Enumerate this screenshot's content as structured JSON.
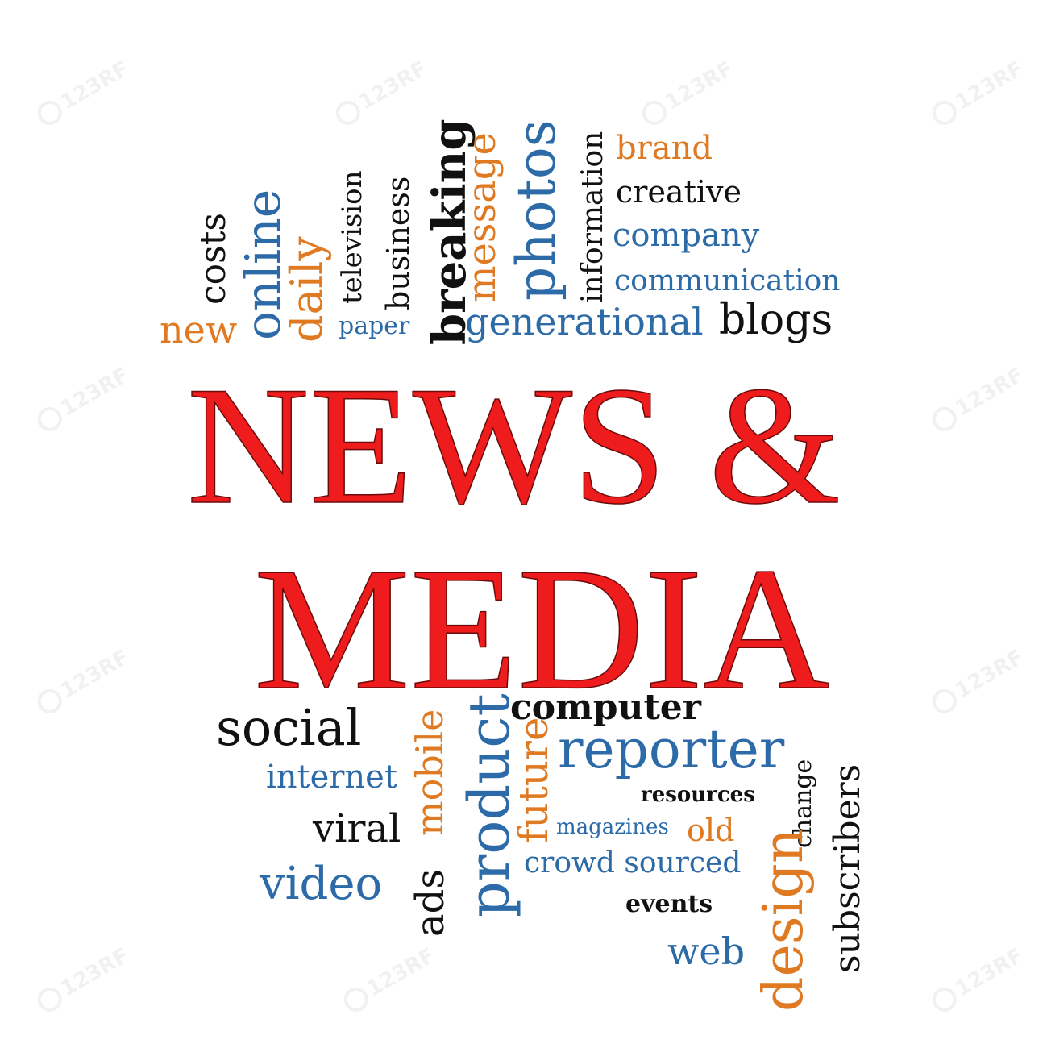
{
  "title": {
    "line1": "NEWS &",
    "line2": "MEDIA"
  },
  "watermark": {
    "text": "123RF",
    "icon": "camera-aperture-icon"
  },
  "colors": {
    "title": "#ee1c1c",
    "black": "#111111",
    "blue": "#2c6aa8",
    "orange": "#e07a22"
  },
  "words_top": {
    "costs": "costs",
    "online": "online",
    "new": "new",
    "daily": "daily",
    "television": "television",
    "paper": "paper",
    "business": "business",
    "breaking": "breaking",
    "message": "message",
    "photos": "photos",
    "information": "information",
    "generational": "generational",
    "brand": "brand",
    "creative": "creative",
    "company": "company",
    "communication": "communication",
    "blogs": "blogs"
  },
  "words_bottom": {
    "social": "social",
    "computer": "computer",
    "internet": "internet",
    "mobile": "mobile",
    "product": "product",
    "future": "future",
    "reporter": "reporter",
    "resources": "resources",
    "change": "change",
    "viral": "viral",
    "magazines": "magazines",
    "old": "old",
    "video": "video",
    "crowd_sourced": "crowd sourced",
    "ads": "ads",
    "events": "events",
    "subscribers": "subscribers",
    "design": "design",
    "web": "web"
  }
}
